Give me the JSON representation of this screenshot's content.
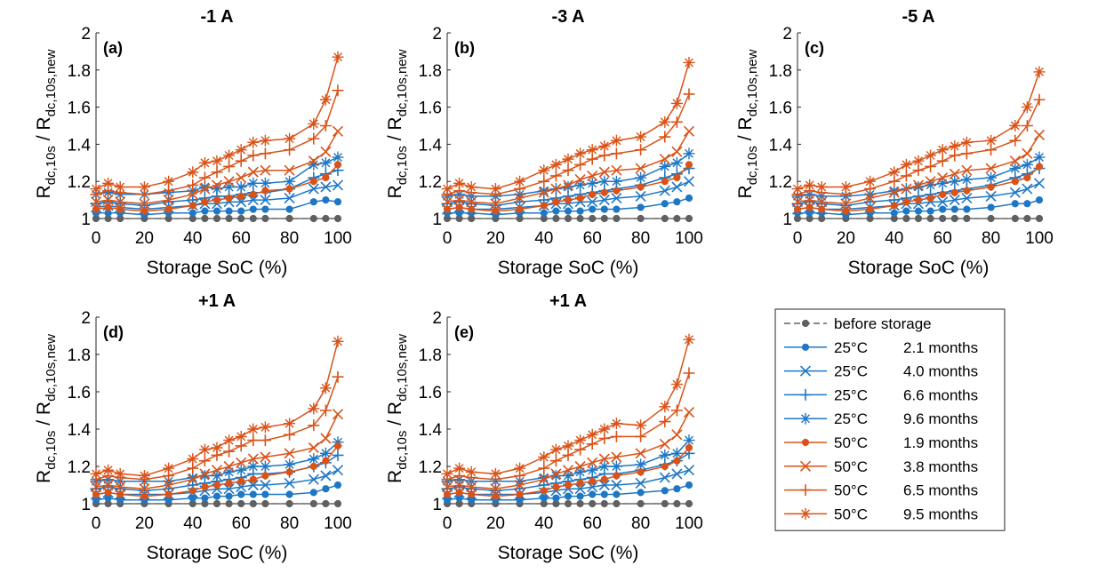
{
  "x": [
    0,
    5,
    10,
    20,
    30,
    40,
    45,
    50,
    55,
    60,
    65,
    70,
    80,
    90,
    95,
    100
  ],
  "legend": [
    {
      "temp": "",
      "duration": "before storage",
      "color": "#606060",
      "marker": "dot",
      "dashed": true
    },
    {
      "temp": "25°C",
      "duration": "2.1 months",
      "color": "#1f77c4",
      "marker": "dot",
      "dashed": false
    },
    {
      "temp": "25°C",
      "duration": "4.0 months",
      "color": "#1f77c4",
      "marker": "x",
      "dashed": false
    },
    {
      "temp": "25°C",
      "duration": "6.6 months",
      "color": "#1f77c4",
      "marker": "plus",
      "dashed": false
    },
    {
      "temp": "25°C",
      "duration": "9.6 months",
      "color": "#1f77c4",
      "marker": "star",
      "dashed": false
    },
    {
      "temp": "50°C",
      "duration": "1.9 months",
      "color": "#d95319",
      "marker": "dot",
      "dashed": false
    },
    {
      "temp": "50°C",
      "duration": "3.8 months",
      "color": "#d95319",
      "marker": "x",
      "dashed": false
    },
    {
      "temp": "50°C",
      "duration": "6.5 months",
      "color": "#d95319",
      "marker": "plus",
      "dashed": false
    },
    {
      "temp": "50°C",
      "duration": "9.5 months",
      "color": "#d95319",
      "marker": "star",
      "dashed": false
    }
  ],
  "chart_data": [
    {
      "type": "line",
      "panel": "(a)",
      "title": "-1 A",
      "xlabel": "Storage SoC (%)",
      "ylabel_main": "R",
      "ylabel_sub1": "dc,10s",
      "ylabel_mid": " / R",
      "ylabel_sub2": "dc,10s,new",
      "xlim": [
        0,
        100
      ],
      "ylim": [
        1,
        2
      ],
      "xticks": [
        "0",
        "20",
        "40",
        "60",
        "80",
        "100"
      ],
      "yticks": [
        "1",
        "1.2",
        "1.4",
        "1.6",
        "1.8",
        "2"
      ],
      "series": [
        {
          "values": [
            1,
            1,
            1,
            1,
            1,
            1,
            1,
            1,
            1,
            1,
            1,
            1,
            1,
            1,
            1,
            1
          ]
        },
        {
          "values": [
            1.03,
            1.03,
            1.03,
            1.02,
            1.03,
            1.03,
            1.04,
            1.04,
            1.04,
            1.04,
            1.05,
            1.05,
            1.05,
            1.09,
            1.1,
            1.09
          ]
        },
        {
          "values": [
            1.06,
            1.07,
            1.06,
            1.05,
            1.06,
            1.07,
            1.08,
            1.08,
            1.09,
            1.09,
            1.1,
            1.1,
            1.11,
            1.16,
            1.17,
            1.18
          ]
        },
        {
          "values": [
            1.08,
            1.09,
            1.08,
            1.07,
            1.09,
            1.1,
            1.11,
            1.12,
            1.12,
            1.13,
            1.14,
            1.14,
            1.16,
            1.22,
            1.24,
            1.26
          ]
        },
        {
          "values": [
            1.13,
            1.14,
            1.13,
            1.13,
            1.14,
            1.15,
            1.17,
            1.16,
            1.17,
            1.17,
            1.19,
            1.19,
            1.2,
            1.29,
            1.3,
            1.33
          ]
        },
        {
          "values": [
            1.05,
            1.06,
            1.05,
            1.04,
            1.05,
            1.07,
            1.09,
            1.1,
            1.11,
            1.12,
            1.13,
            1.15,
            1.16,
            1.2,
            1.22,
            1.29
          ]
        },
        {
          "values": [
            1.09,
            1.1,
            1.09,
            1.08,
            1.1,
            1.13,
            1.16,
            1.18,
            1.2,
            1.22,
            1.25,
            1.26,
            1.26,
            1.31,
            1.36,
            1.47
          ]
        },
        {
          "values": [
            1.13,
            1.15,
            1.14,
            1.13,
            1.15,
            1.18,
            1.22,
            1.25,
            1.28,
            1.31,
            1.34,
            1.35,
            1.37,
            1.43,
            1.5,
            1.69
          ]
        },
        {
          "values": [
            1.16,
            1.19,
            1.17,
            1.17,
            1.2,
            1.25,
            1.3,
            1.31,
            1.34,
            1.37,
            1.41,
            1.42,
            1.43,
            1.51,
            1.64,
            1.87
          ]
        }
      ]
    },
    {
      "type": "line",
      "panel": "(b)",
      "title": "-3 A",
      "xlabel": "Storage SoC (%)",
      "ylabel_main": "R",
      "ylabel_sub1": "dc,10s",
      "ylabel_mid": " / R",
      "ylabel_sub2": "dc,10s,new",
      "xlim": [
        0,
        100
      ],
      "ylim": [
        1,
        2
      ],
      "xticks": [
        "0",
        "20",
        "40",
        "60",
        "80",
        "100"
      ],
      "yticks": [
        "1",
        "1.2",
        "1.4",
        "1.6",
        "1.8",
        "2"
      ],
      "series": [
        {
          "values": [
            1,
            1,
            1,
            1,
            1,
            1,
            1,
            1,
            1,
            1,
            1,
            1,
            1,
            1,
            1,
            1
          ]
        },
        {
          "values": [
            1.03,
            1.03,
            1.03,
            1.02,
            1.03,
            1.03,
            1.04,
            1.04,
            1.04,
            1.05,
            1.05,
            1.05,
            1.06,
            1.08,
            1.09,
            1.11
          ]
        },
        {
          "values": [
            1.05,
            1.06,
            1.05,
            1.05,
            1.06,
            1.07,
            1.08,
            1.08,
            1.09,
            1.09,
            1.1,
            1.11,
            1.12,
            1.15,
            1.17,
            1.2
          ]
        },
        {
          "values": [
            1.08,
            1.09,
            1.08,
            1.07,
            1.09,
            1.1,
            1.11,
            1.12,
            1.13,
            1.14,
            1.15,
            1.16,
            1.18,
            1.22,
            1.24,
            1.27
          ]
        },
        {
          "values": [
            1.12,
            1.13,
            1.12,
            1.12,
            1.13,
            1.15,
            1.16,
            1.17,
            1.18,
            1.19,
            1.2,
            1.2,
            1.22,
            1.28,
            1.3,
            1.35
          ]
        },
        {
          "values": [
            1.05,
            1.06,
            1.05,
            1.04,
            1.05,
            1.07,
            1.09,
            1.1,
            1.11,
            1.13,
            1.14,
            1.15,
            1.17,
            1.2,
            1.22,
            1.29
          ]
        },
        {
          "values": [
            1.09,
            1.1,
            1.09,
            1.08,
            1.11,
            1.14,
            1.16,
            1.18,
            1.21,
            1.23,
            1.25,
            1.26,
            1.27,
            1.32,
            1.36,
            1.47
          ]
        },
        {
          "values": [
            1.13,
            1.15,
            1.14,
            1.13,
            1.16,
            1.2,
            1.23,
            1.26,
            1.29,
            1.32,
            1.34,
            1.35,
            1.37,
            1.44,
            1.52,
            1.67
          ]
        },
        {
          "values": [
            1.16,
            1.19,
            1.17,
            1.16,
            1.2,
            1.26,
            1.29,
            1.32,
            1.35,
            1.37,
            1.39,
            1.42,
            1.44,
            1.52,
            1.62,
            1.84
          ]
        }
      ]
    },
    {
      "type": "line",
      "panel": "(c)",
      "title": "-5 A",
      "xlabel": "Storage SoC (%)",
      "ylabel_main": "R",
      "ylabel_sub1": "dc,10s",
      "ylabel_mid": " / R",
      "ylabel_sub2": "dc,10s,new",
      "xlim": [
        0,
        100
      ],
      "ylim": [
        1,
        2
      ],
      "xticks": [
        "0",
        "20",
        "40",
        "60",
        "80",
        "100"
      ],
      "yticks": [
        "1",
        "1.2",
        "1.4",
        "1.6",
        "1.8",
        "2"
      ],
      "series": [
        {
          "values": [
            1,
            1,
            1,
            1,
            1,
            1,
            1,
            1,
            1,
            1,
            1,
            1,
            1,
            1,
            1,
            1
          ]
        },
        {
          "values": [
            1.03,
            1.03,
            1.03,
            1.02,
            1.03,
            1.03,
            1.04,
            1.04,
            1.04,
            1.05,
            1.05,
            1.05,
            1.06,
            1.08,
            1.08,
            1.1
          ]
        },
        {
          "values": [
            1.05,
            1.06,
            1.05,
            1.05,
            1.06,
            1.07,
            1.08,
            1.08,
            1.09,
            1.09,
            1.1,
            1.11,
            1.12,
            1.14,
            1.16,
            1.19
          ]
        },
        {
          "values": [
            1.08,
            1.09,
            1.08,
            1.07,
            1.09,
            1.1,
            1.11,
            1.12,
            1.13,
            1.14,
            1.15,
            1.16,
            1.18,
            1.22,
            1.24,
            1.27
          ]
        },
        {
          "values": [
            1.12,
            1.13,
            1.12,
            1.12,
            1.13,
            1.15,
            1.16,
            1.17,
            1.18,
            1.19,
            1.2,
            1.21,
            1.22,
            1.27,
            1.29,
            1.33
          ]
        },
        {
          "values": [
            1.05,
            1.06,
            1.05,
            1.04,
            1.05,
            1.07,
            1.09,
            1.1,
            1.11,
            1.13,
            1.14,
            1.15,
            1.17,
            1.2,
            1.22,
            1.28
          ]
        },
        {
          "values": [
            1.09,
            1.1,
            1.09,
            1.08,
            1.11,
            1.14,
            1.16,
            1.18,
            1.2,
            1.22,
            1.24,
            1.26,
            1.27,
            1.31,
            1.35,
            1.45
          ]
        },
        {
          "values": [
            1.13,
            1.15,
            1.14,
            1.13,
            1.16,
            1.2,
            1.23,
            1.26,
            1.28,
            1.31,
            1.34,
            1.35,
            1.37,
            1.42,
            1.5,
            1.64
          ]
        },
        {
          "values": [
            1.16,
            1.18,
            1.17,
            1.17,
            1.2,
            1.25,
            1.29,
            1.31,
            1.34,
            1.37,
            1.39,
            1.41,
            1.42,
            1.5,
            1.6,
            1.79
          ]
        }
      ]
    },
    {
      "type": "line",
      "panel": "(d)",
      "title": "+1 A",
      "xlabel": "Storage SoC (%)",
      "ylabel_main": "R",
      "ylabel_sub1": "dc,10s",
      "ylabel_mid": " / R",
      "ylabel_sub2": "dc,10s,new",
      "xlim": [
        0,
        100
      ],
      "ylim": [
        1,
        2
      ],
      "xticks": [
        "0",
        "20",
        "40",
        "60",
        "80",
        "100"
      ],
      "yticks": [
        "1",
        "1.2",
        "1.4",
        "1.6",
        "1.8",
        "2"
      ],
      "series": [
        {
          "values": [
            1,
            1,
            1,
            1,
            1,
            1,
            1,
            1,
            1,
            1,
            1,
            1,
            1,
            1,
            1,
            1
          ]
        },
        {
          "values": [
            1.02,
            1.03,
            1.02,
            1.02,
            1.02,
            1.03,
            1.03,
            1.04,
            1.04,
            1.05,
            1.05,
            1.05,
            1.05,
            1.06,
            1.08,
            1.1
          ]
        },
        {
          "values": [
            1.05,
            1.06,
            1.05,
            1.05,
            1.05,
            1.06,
            1.07,
            1.08,
            1.08,
            1.09,
            1.1,
            1.1,
            1.11,
            1.13,
            1.15,
            1.18
          ]
        },
        {
          "values": [
            1.08,
            1.09,
            1.08,
            1.07,
            1.08,
            1.1,
            1.11,
            1.12,
            1.13,
            1.14,
            1.16,
            1.16,
            1.17,
            1.2,
            1.22,
            1.26
          ]
        },
        {
          "values": [
            1.12,
            1.13,
            1.12,
            1.12,
            1.12,
            1.14,
            1.15,
            1.15,
            1.17,
            1.18,
            1.2,
            1.2,
            1.21,
            1.24,
            1.27,
            1.33
          ]
        },
        {
          "values": [
            1.05,
            1.06,
            1.05,
            1.04,
            1.05,
            1.07,
            1.09,
            1.1,
            1.11,
            1.12,
            1.13,
            1.15,
            1.17,
            1.2,
            1.23,
            1.31
          ]
        },
        {
          "values": [
            1.09,
            1.1,
            1.09,
            1.08,
            1.1,
            1.13,
            1.16,
            1.18,
            1.2,
            1.22,
            1.24,
            1.25,
            1.27,
            1.3,
            1.35,
            1.48
          ]
        },
        {
          "values": [
            1.13,
            1.15,
            1.14,
            1.13,
            1.15,
            1.19,
            1.23,
            1.26,
            1.28,
            1.31,
            1.34,
            1.34,
            1.37,
            1.42,
            1.5,
            1.68
          ]
        },
        {
          "values": [
            1.16,
            1.18,
            1.16,
            1.15,
            1.19,
            1.24,
            1.29,
            1.3,
            1.34,
            1.36,
            1.4,
            1.41,
            1.43,
            1.51,
            1.62,
            1.87
          ]
        }
      ]
    },
    {
      "type": "line",
      "panel": "(e)",
      "title": "+1 A",
      "xlabel": "Storage SoC (%)",
      "ylabel_main": "R",
      "ylabel_sub1": "dc,10s",
      "ylabel_mid": " / R",
      "ylabel_sub2": "dc,10s,new",
      "xlim": [
        0,
        100
      ],
      "ylim": [
        1,
        2
      ],
      "xticks": [
        "0",
        "20",
        "40",
        "60",
        "80",
        "100"
      ],
      "yticks": [
        "1",
        "1.2",
        "1.4",
        "1.6",
        "1.8",
        "2"
      ],
      "series": [
        {
          "values": [
            1,
            1,
            1,
            1,
            1,
            1,
            1,
            1,
            1,
            1,
            1,
            1,
            1,
            1,
            1,
            1
          ]
        },
        {
          "values": [
            1.02,
            1.03,
            1.02,
            1.02,
            1.02,
            1.03,
            1.03,
            1.04,
            1.04,
            1.05,
            1.05,
            1.05,
            1.06,
            1.07,
            1.08,
            1.1
          ]
        },
        {
          "values": [
            1.05,
            1.06,
            1.05,
            1.05,
            1.05,
            1.06,
            1.07,
            1.08,
            1.08,
            1.09,
            1.1,
            1.1,
            1.11,
            1.14,
            1.16,
            1.18
          ]
        },
        {
          "values": [
            1.08,
            1.09,
            1.08,
            1.07,
            1.08,
            1.1,
            1.11,
            1.12,
            1.13,
            1.14,
            1.16,
            1.16,
            1.18,
            1.21,
            1.23,
            1.27
          ]
        },
        {
          "values": [
            1.12,
            1.13,
            1.12,
            1.12,
            1.12,
            1.14,
            1.15,
            1.15,
            1.17,
            1.18,
            1.2,
            1.2,
            1.21,
            1.26,
            1.27,
            1.34
          ]
        },
        {
          "values": [
            1.05,
            1.06,
            1.05,
            1.04,
            1.05,
            1.07,
            1.09,
            1.1,
            1.11,
            1.12,
            1.13,
            1.15,
            1.17,
            1.2,
            1.23,
            1.3
          ]
        },
        {
          "values": [
            1.09,
            1.1,
            1.09,
            1.08,
            1.1,
            1.13,
            1.16,
            1.18,
            1.2,
            1.22,
            1.24,
            1.25,
            1.27,
            1.32,
            1.37,
            1.49
          ]
        },
        {
          "values": [
            1.13,
            1.15,
            1.14,
            1.13,
            1.15,
            1.19,
            1.23,
            1.26,
            1.29,
            1.32,
            1.35,
            1.36,
            1.36,
            1.44,
            1.5,
            1.7
          ]
        },
        {
          "values": [
            1.16,
            1.19,
            1.17,
            1.16,
            1.19,
            1.25,
            1.29,
            1.31,
            1.34,
            1.37,
            1.4,
            1.43,
            1.42,
            1.52,
            1.64,
            1.88
          ]
        }
      ]
    }
  ]
}
